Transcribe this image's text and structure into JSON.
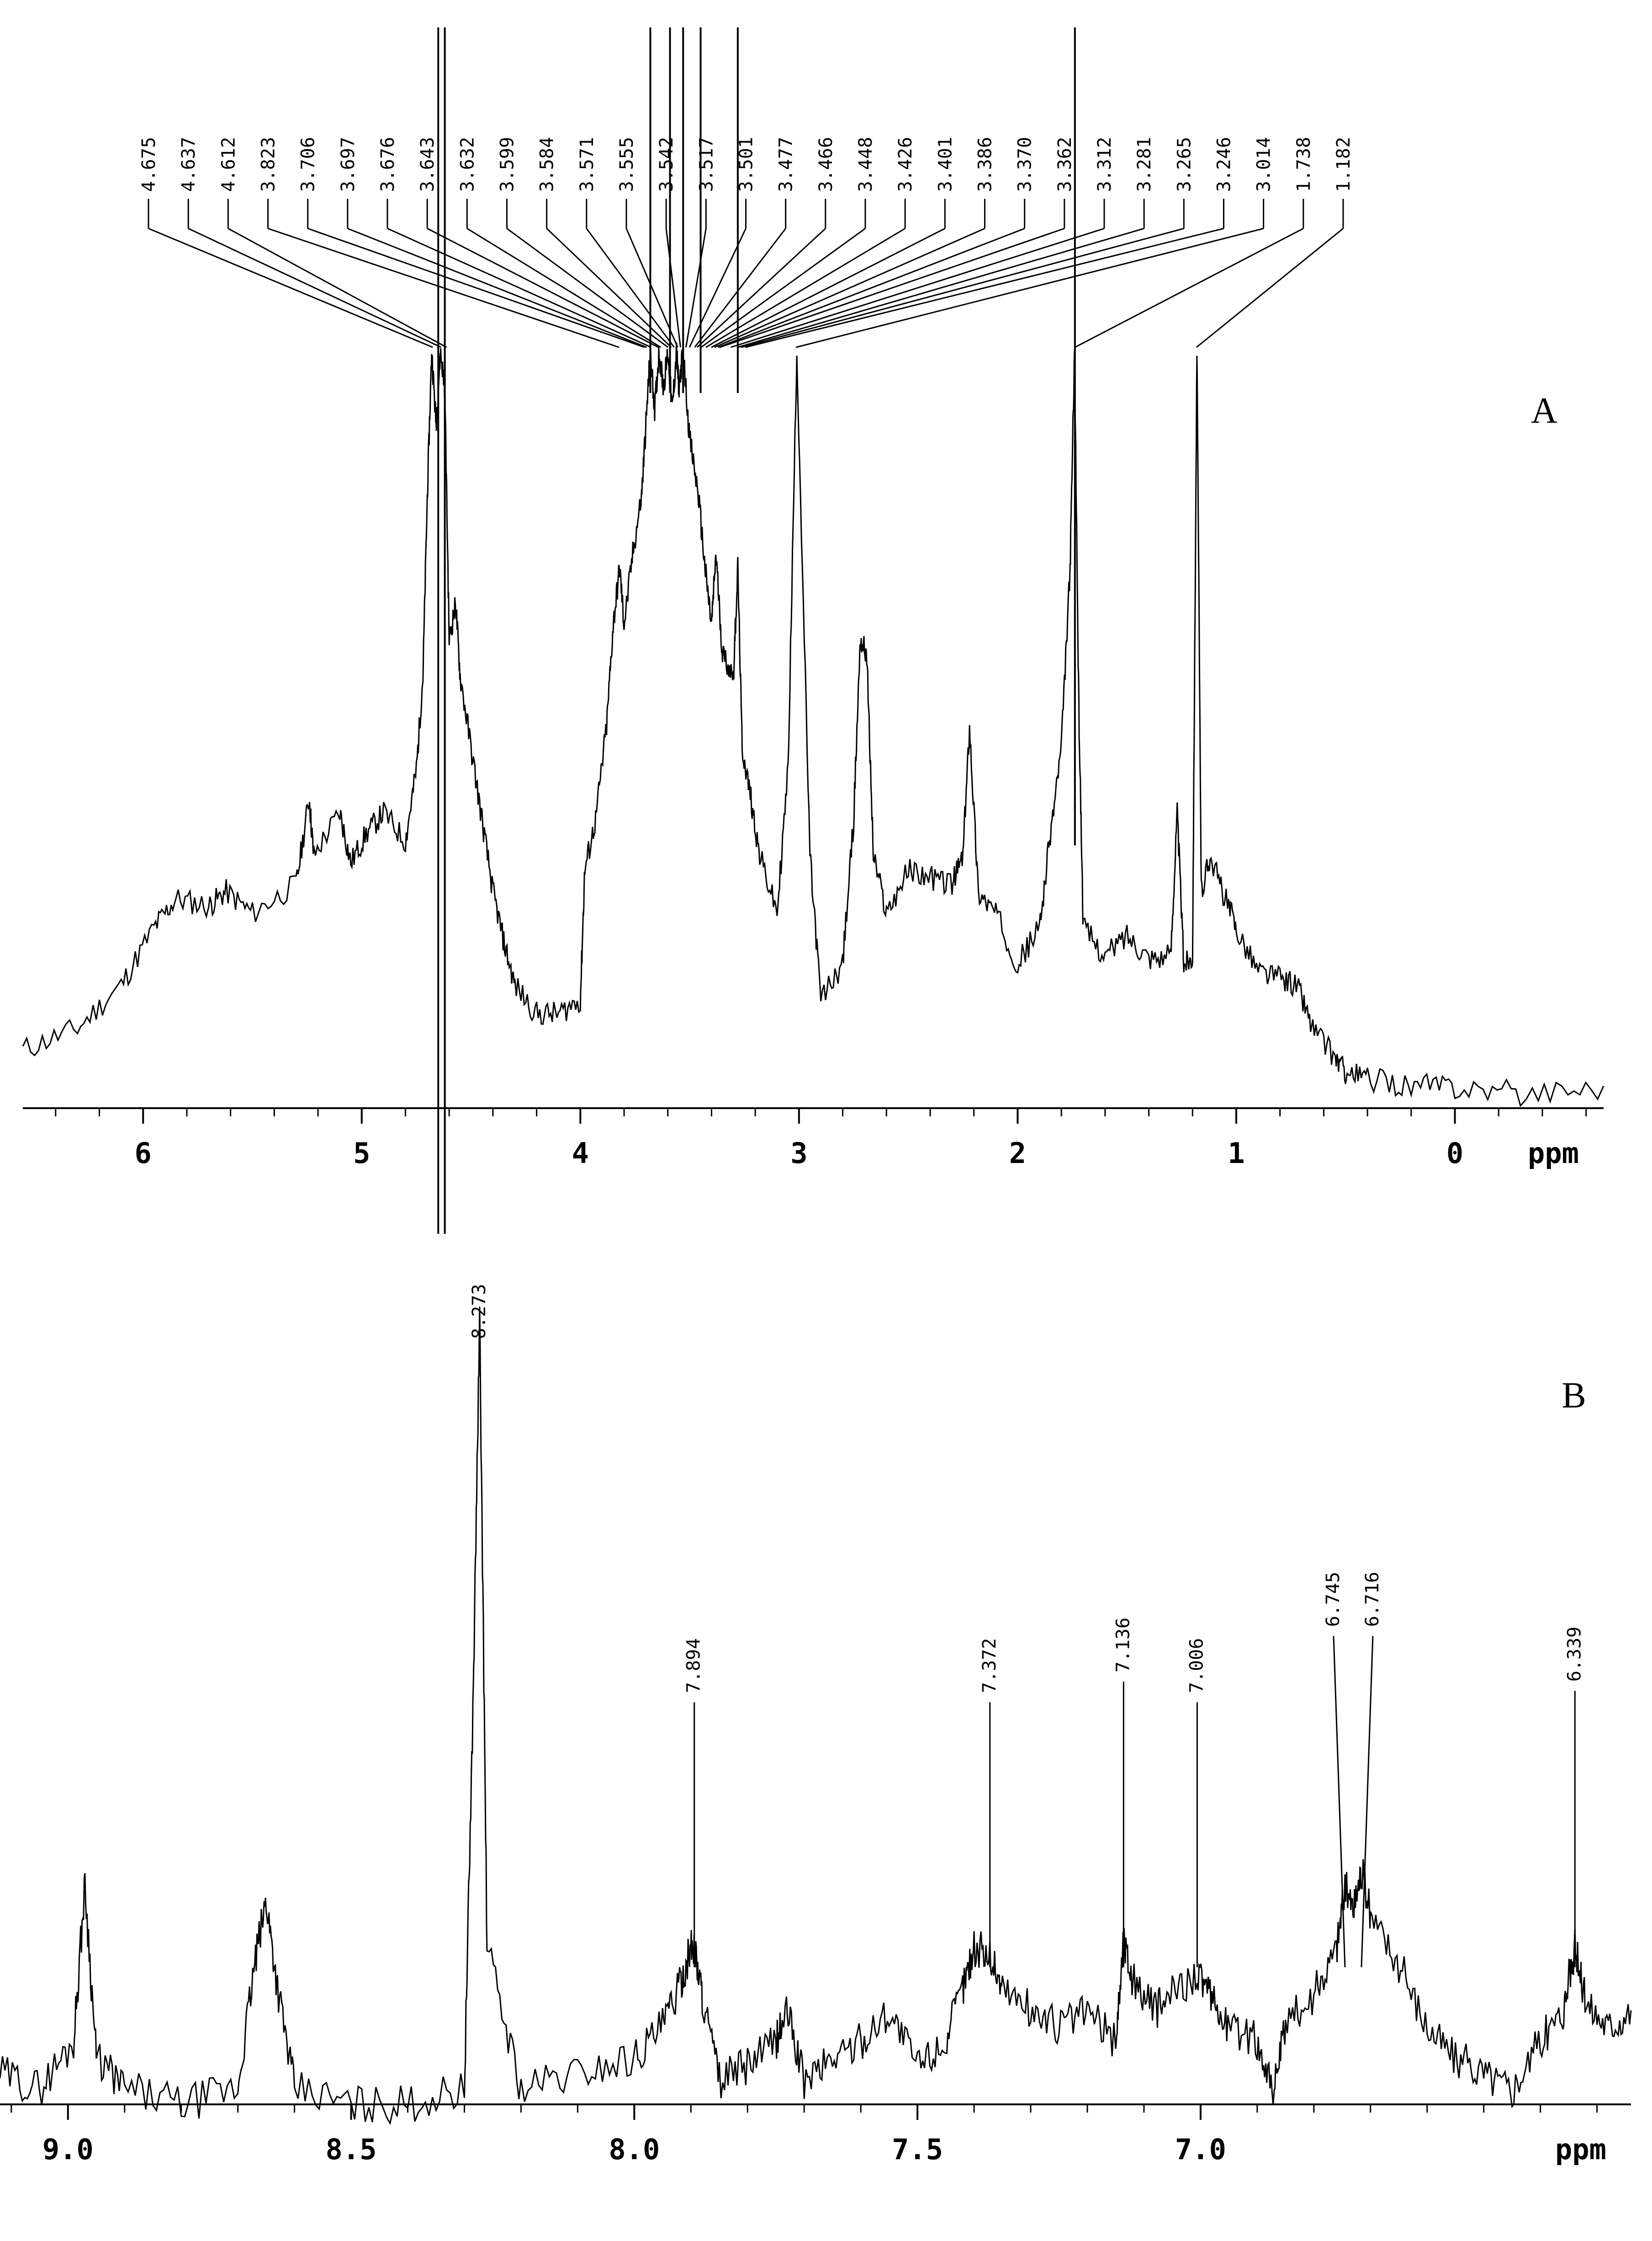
{
  "chart_data": [
    {
      "type": "line",
      "panel": "A",
      "xlabel": "ppm",
      "x_reversed": true,
      "xlim": [
        6.55,
        -0.68
      ],
      "x_ticks": [
        6,
        5,
        4,
        3,
        2,
        1,
        0
      ],
      "x_tick_labels": [
        "6",
        "5",
        "4",
        "3",
        "2",
        "1",
        "0"
      ],
      "peak_labels": [
        "4.675",
        "4.637",
        "4.612",
        "3.823",
        "3.706",
        "3.697",
        "3.676",
        "3.643",
        "3.632",
        "3.599",
        "3.584",
        "3.571",
        "3.555",
        "3.542",
        "3.517",
        "3.501",
        "3.477",
        "3.466",
        "3.448",
        "3.426",
        "3.401",
        "3.386",
        "3.370",
        "3.362",
        "3.312",
        "3.281",
        "3.265",
        "3.246",
        "3.014",
        "1.738",
        "1.182"
      ],
      "series": [
        {
          "x": [
            6.55,
            6.3,
            6.1,
            5.95,
            5.85,
            5.7,
            5.62,
            5.5,
            5.3,
            5.24,
            5.22,
            5.1,
            5.05,
            4.98,
            4.9,
            4.8,
            4.75,
            4.72,
            4.7,
            4.68,
            4.66,
            4.64,
            4.62,
            4.6,
            4.57,
            4.55,
            4.5,
            4.45,
            4.4,
            4.35,
            4.3,
            4.2,
            4.1,
            4.0,
            3.98,
            3.93,
            3.88,
            3.85,
            3.82,
            3.8,
            3.76,
            3.72,
            3.7,
            3.68,
            3.66,
            3.64,
            3.62,
            3.6,
            3.58,
            3.56,
            3.55,
            3.53,
            3.5,
            3.46,
            3.43,
            3.4,
            3.38,
            3.35,
            3.3,
            3.28,
            3.26,
            3.22,
            3.18,
            3.1,
            3.05,
            3.01,
            2.95,
            2.9,
            2.8,
            2.75,
            2.72,
            2.69,
            2.66,
            2.6,
            2.5,
            2.4,
            2.3,
            2.25,
            2.22,
            2.18,
            2.1,
            2.0,
            1.9,
            1.85,
            1.8,
            1.76,
            1.74,
            1.72,
            1.7,
            1.6,
            1.5,
            1.4,
            1.3,
            1.27,
            1.24,
            1.2,
            1.18,
            1.16,
            1.12,
            1.05,
            1.0,
            0.9,
            0.8,
            0.72,
            0.65,
            0.55,
            0.5,
            0.4,
            0.2,
            0.0,
            -0.3,
            -0.68
          ],
          "y": [
            0.03,
            0.06,
            0.12,
            0.2,
            0.24,
            0.23,
            0.25,
            0.22,
            0.26,
            0.38,
            0.3,
            0.36,
            0.29,
            0.33,
            0.36,
            0.32,
            0.42,
            0.55,
            0.8,
            1.0,
            0.9,
            1.0,
            0.95,
            0.6,
            0.65,
            0.55,
            0.45,
            0.35,
            0.25,
            0.18,
            0.12,
            0.08,
            0.08,
            0.1,
            0.28,
            0.35,
            0.48,
            0.62,
            0.7,
            0.62,
            0.72,
            0.8,
            0.9,
            1.0,
            0.92,
            1.0,
            0.95,
            1.0,
            0.92,
            1.0,
            0.95,
            1.0,
            0.88,
            0.8,
            0.7,
            0.62,
            0.72,
            0.58,
            0.55,
            0.7,
            0.45,
            0.38,
            0.3,
            0.22,
            0.42,
            1.0,
            0.3,
            0.1,
            0.15,
            0.35,
            0.6,
            0.58,
            0.3,
            0.22,
            0.28,
            0.27,
            0.26,
            0.3,
            0.48,
            0.25,
            0.22,
            0.15,
            0.2,
            0.33,
            0.45,
            0.7,
            1.0,
            0.5,
            0.2,
            0.16,
            0.19,
            0.16,
            0.16,
            0.36,
            0.15,
            0.16,
            1.0,
            0.25,
            0.3,
            0.24,
            0.2,
            0.14,
            0.13,
            0.12,
            0.06,
            0.02,
            0.0,
            -0.01,
            -0.02,
            -0.02,
            -0.03,
            -0.02
          ]
        }
      ]
    },
    {
      "type": "line",
      "panel": "B",
      "xlabel": "ppm",
      "x_reversed": true,
      "xlim": [
        9.12,
        6.24
      ],
      "x_ticks": [
        9.0,
        8.5,
        8.0,
        7.5,
        7.0
      ],
      "x_tick_labels": [
        "9.0",
        "8.5",
        "8.0",
        "7.5",
        "7.0"
      ],
      "peak_labels": [
        "8.273",
        "7.894",
        "7.372",
        "7.136",
        "7.006",
        "6.745",
        "6.716",
        "6.339"
      ],
      "series": [
        {
          "x": [
            9.12,
            9.05,
            8.99,
            8.97,
            8.95,
            8.9,
            8.8,
            8.7,
            8.67,
            8.65,
            8.63,
            8.6,
            8.5,
            8.4,
            8.3,
            8.285,
            8.273,
            8.26,
            8.2,
            8.1,
            8.0,
            7.95,
            7.92,
            7.9,
            7.894,
            7.88,
            7.85,
            7.8,
            7.75,
            7.73,
            7.7,
            7.65,
            7.6,
            7.55,
            7.5,
            7.45,
            7.42,
            7.4,
            7.372,
            7.35,
            7.3,
            7.25,
            7.2,
            7.15,
            7.136,
            7.12,
            7.08,
            7.05,
            7.006,
            6.98,
            6.95,
            6.9,
            6.87,
            6.85,
            6.8,
            6.76,
            6.745,
            6.73,
            6.716,
            6.7,
            6.65,
            6.6,
            6.55,
            6.5,
            6.45,
            6.4,
            6.36,
            6.339,
            6.32,
            6.28,
            6.24
          ],
          "y": [
            0.04,
            0.02,
            0.08,
            0.28,
            0.06,
            0.02,
            0.0,
            0.02,
            0.18,
            0.26,
            0.15,
            0.02,
            0.0,
            0.0,
            0.02,
            0.5,
            1.0,
            0.2,
            0.02,
            0.04,
            0.06,
            0.1,
            0.15,
            0.2,
            0.2,
            0.14,
            0.03,
            0.05,
            0.08,
            0.12,
            0.03,
            0.06,
            0.08,
            0.12,
            0.05,
            0.08,
            0.15,
            0.2,
            0.19,
            0.15,
            0.12,
            0.1,
            0.12,
            0.08,
            0.21,
            0.16,
            0.12,
            0.14,
            0.17,
            0.13,
            0.1,
            0.08,
            0.02,
            0.1,
            0.14,
            0.2,
            0.28,
            0.25,
            0.3,
            0.24,
            0.18,
            0.1,
            0.06,
            0.04,
            0.02,
            0.08,
            0.12,
            0.2,
            0.13,
            0.1,
            0.12
          ]
        }
      ]
    }
  ],
  "panel_labels": {
    "a": "A",
    "b": "B"
  },
  "axis_unit": "ppm"
}
